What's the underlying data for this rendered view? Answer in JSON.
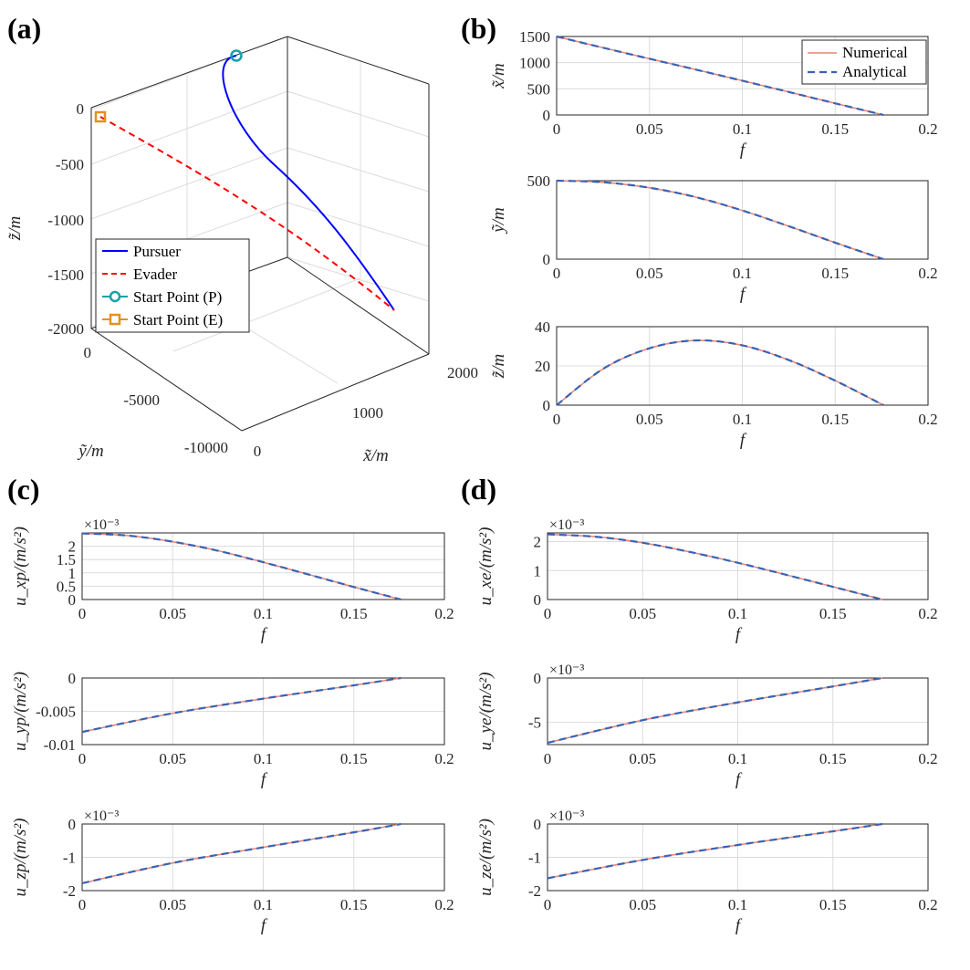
{
  "figure": {
    "panel_labels": [
      "(a)",
      "(b)",
      "(c)",
      "(d)"
    ]
  },
  "colors": {
    "pursuer": "#0000ff",
    "evader": "#ff0000",
    "start_p": "#17a0a8",
    "start_e": "#e6901c",
    "numerical": "#f08070",
    "analytical": "#3a62b4"
  },
  "chart_data": [
    {
      "id": "a",
      "type": "line3d",
      "zlabel": "z̃/m",
      "ylabel": "ỹ/m",
      "xlabel": "x̃/m",
      "xticks": [
        "0",
        "1000",
        "2000"
      ],
      "yticks": [
        "0",
        "-5000",
        "-10000"
      ],
      "zticks": [
        "0",
        "-500",
        "-1000",
        "-1500",
        "-2000"
      ],
      "legend": [
        "Pursuer",
        "Evader",
        "Start Point (P)",
        "Start Point (E)"
      ],
      "series": [
        {
          "name": "Pursuer",
          "start": [
            1500,
            500,
            0
          ],
          "end": [
            1500,
            -9200,
            -1850
          ]
        },
        {
          "name": "Evader",
          "start": [
            0,
            0,
            -50
          ],
          "end": [
            1500,
            -9200,
            -1850
          ]
        }
      ]
    },
    {
      "id": "b1",
      "type": "line",
      "xlabel": "f",
      "ylabel": "x̃/m",
      "xlim": [
        0,
        0.2
      ],
      "ylim": [
        0,
        1500
      ],
      "xticks": [
        "0",
        "0.05",
        "0.1",
        "0.15",
        "0.2"
      ],
      "yticks": [
        "0",
        "500",
        "1000",
        "1500"
      ],
      "legend": [
        "Numerical",
        "Analytical"
      ],
      "x": [
        0,
        0.025,
        0.05,
        0.075,
        0.1,
        0.125,
        0.15,
        0.176
      ],
      "series": [
        {
          "name": "Numerical",
          "values": [
            1500,
            1285,
            1075,
            867,
            655,
            440,
            222,
            0
          ]
        },
        {
          "name": "Analytical",
          "values": [
            1500,
            1285,
            1075,
            867,
            655,
            440,
            222,
            0
          ]
        }
      ]
    },
    {
      "id": "b2",
      "type": "line",
      "xlabel": "f",
      "ylabel": "ỹ/m",
      "xlim": [
        0,
        0.2
      ],
      "ylim": [
        0,
        500
      ],
      "xticks": [
        "0",
        "0.05",
        "0.1",
        "0.15",
        "0.2"
      ],
      "yticks": [
        "0",
        "500"
      ],
      "x": [
        0,
        0.025,
        0.05,
        0.075,
        0.1,
        0.125,
        0.15,
        0.176
      ],
      "series": [
        {
          "name": "Numerical",
          "values": [
            500,
            490,
            455,
            395,
            310,
            210,
            105,
            0
          ]
        },
        {
          "name": "Analytical",
          "values": [
            500,
            490,
            455,
            395,
            310,
            210,
            105,
            0
          ]
        }
      ]
    },
    {
      "id": "b3",
      "type": "line",
      "xlabel": "f",
      "ylabel": "z̃/m",
      "xlim": [
        0,
        0.2
      ],
      "ylim": [
        0,
        40
      ],
      "xticks": [
        "0",
        "0.05",
        "0.1",
        "0.15",
        "0.2"
      ],
      "yticks": [
        "0",
        "20",
        "40"
      ],
      "x": [
        0,
        0.025,
        0.05,
        0.075,
        0.1,
        0.125,
        0.15,
        0.176
      ],
      "series": [
        {
          "name": "Numerical",
          "values": [
            0,
            18.5,
            29,
            33,
            30.5,
            23,
            12.5,
            0
          ]
        },
        {
          "name": "Analytical",
          "values": [
            0,
            18.5,
            29,
            33,
            30.5,
            23,
            12.5,
            0
          ]
        }
      ]
    },
    {
      "id": "c1",
      "type": "line",
      "xlabel": "f",
      "ylabel": "u_xp/(m/s²)",
      "exponent": "×10⁻³",
      "xlim": [
        0,
        0.2
      ],
      "ylim": [
        0,
        2.5
      ],
      "xticks": [
        "0",
        "0.05",
        "0.1",
        "0.15",
        "0.2"
      ],
      "yticks": [
        "0",
        "0.5",
        "1",
        "1.5",
        "2"
      ],
      "x": [
        0,
        0.025,
        0.05,
        0.075,
        0.1,
        0.125,
        0.15,
        0.176
      ],
      "series": [
        {
          "name": "Numerical",
          "values": [
            2.48,
            2.4,
            2.17,
            1.83,
            1.4,
            0.94,
            0.47,
            0
          ]
        },
        {
          "name": "Analytical",
          "values": [
            2.48,
            2.4,
            2.17,
            1.83,
            1.4,
            0.94,
            0.47,
            0
          ]
        }
      ]
    },
    {
      "id": "c2",
      "type": "line",
      "xlabel": "f",
      "ylabel": "u_yp/(m/s²)",
      "xlim": [
        0,
        0.2
      ],
      "ylim": [
        -0.01,
        0
      ],
      "xticks": [
        "0",
        "0.05",
        "0.1",
        "0.15",
        "0.2"
      ],
      "yticks": [
        "-0.01",
        "-0.005",
        "0"
      ],
      "x": [
        0,
        0.05,
        0.1,
        0.15,
        0.176
      ],
      "series": [
        {
          "name": "Numerical",
          "values": [
            -0.0081,
            -0.0053,
            -0.0031,
            -0.0011,
            0
          ]
        },
        {
          "name": "Analytical",
          "values": [
            -0.0081,
            -0.0053,
            -0.0031,
            -0.0011,
            0
          ]
        }
      ]
    },
    {
      "id": "c3",
      "type": "line",
      "xlabel": "f",
      "ylabel": "u_zp/(m/s²)",
      "exponent": "×10⁻³",
      "xlim": [
        0,
        0.2
      ],
      "ylim": [
        -2,
        0
      ],
      "xticks": [
        "0",
        "0.05",
        "0.1",
        "0.15",
        "0.2"
      ],
      "yticks": [
        "-2",
        "-1",
        "0"
      ],
      "x": [
        0,
        0.05,
        0.1,
        0.15,
        0.176
      ],
      "series": [
        {
          "name": "Numerical",
          "values": [
            -1.78,
            -1.17,
            -0.7,
            -0.25,
            0
          ]
        },
        {
          "name": "Analytical",
          "values": [
            -1.78,
            -1.17,
            -0.7,
            -0.25,
            0
          ]
        }
      ]
    },
    {
      "id": "d1",
      "type": "line",
      "xlabel": "f",
      "ylabel": "u_xe/(m/s²)",
      "exponent": "×10⁻³",
      "xlim": [
        0,
        0.2
      ],
      "ylim": [
        0,
        2.3
      ],
      "xticks": [
        "0",
        "0.05",
        "0.1",
        "0.15",
        "0.2"
      ],
      "yticks": [
        "0",
        "1",
        "2"
      ],
      "x": [
        0,
        0.025,
        0.05,
        0.075,
        0.1,
        0.125,
        0.15,
        0.176
      ],
      "series": [
        {
          "name": "Numerical",
          "values": [
            2.25,
            2.17,
            1.96,
            1.64,
            1.27,
            0.86,
            0.44,
            0
          ]
        },
        {
          "name": "Analytical",
          "values": [
            2.25,
            2.17,
            1.96,
            1.64,
            1.27,
            0.86,
            0.44,
            0
          ]
        }
      ]
    },
    {
      "id": "d2",
      "type": "line",
      "xlabel": "f",
      "ylabel": "u_ye/(m/s²)",
      "exponent": "×10⁻³",
      "xlim": [
        0,
        0.2
      ],
      "ylim": [
        -7.5,
        0
      ],
      "xticks": [
        "0",
        "0.05",
        "0.1",
        "0.15",
        "0.2"
      ],
      "yticks": [
        "-5",
        "0"
      ],
      "x": [
        0,
        0.05,
        0.1,
        0.15,
        0.176
      ],
      "series": [
        {
          "name": "Numerical",
          "values": [
            -7.3,
            -4.75,
            -2.75,
            -0.95,
            0
          ]
        },
        {
          "name": "Analytical",
          "values": [
            -7.3,
            -4.75,
            -2.75,
            -0.95,
            0
          ]
        }
      ]
    },
    {
      "id": "d3",
      "type": "line",
      "xlabel": "f",
      "ylabel": "u_ze/(m/s²)",
      "exponent": "×10⁻³",
      "xlim": [
        0,
        0.2
      ],
      "ylim": [
        -2,
        0
      ],
      "xticks": [
        "0",
        "0.05",
        "0.1",
        "0.15",
        "0.2"
      ],
      "yticks": [
        "-2",
        "-1",
        "0"
      ],
      "x": [
        0,
        0.05,
        0.1,
        0.15,
        0.176
      ],
      "series": [
        {
          "name": "Numerical",
          "values": [
            -1.63,
            -1.08,
            -0.63,
            -0.22,
            0
          ]
        },
        {
          "name": "Analytical",
          "values": [
            -1.63,
            -1.08,
            -0.63,
            -0.22,
            0
          ]
        }
      ]
    }
  ]
}
